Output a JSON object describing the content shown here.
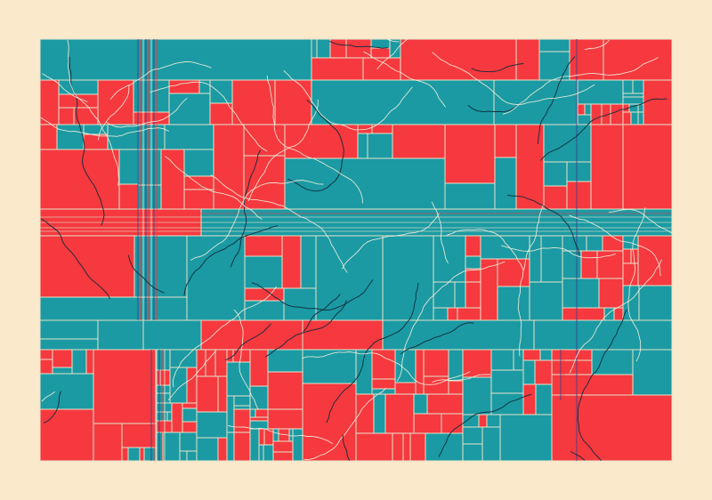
{
  "artwork": {
    "palette": {
      "background": "#fbe9cc",
      "teal": "#1b9aa3",
      "red": "#f5393f",
      "grid_line": "#e6e3c8",
      "curve_light": "#f2efdc",
      "curve_dark": "#0f2a3a",
      "accent_blue": "#3b3f8c"
    },
    "description_icon": "generative-abstract-icon"
  }
}
